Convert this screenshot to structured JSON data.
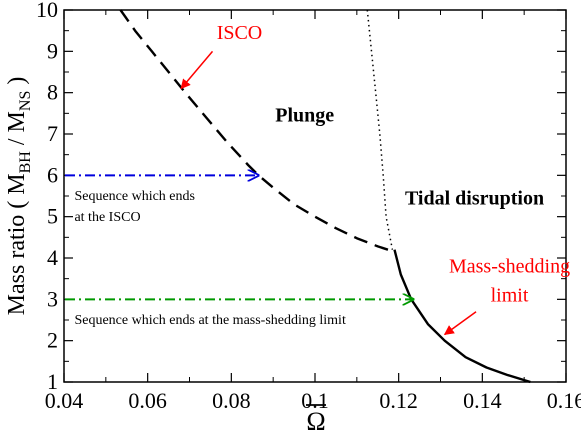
{
  "chart_data": {
    "type": "line",
    "xlabel": "Ω",
    "ylabel": "Mass ratio ( M",
    "ylabel_sub1": "BH",
    "ylabel_mid": " / M",
    "ylabel_sub2": "NS",
    "ylabel_end": " )",
    "xlim": [
      0.04,
      0.16
    ],
    "ylim": [
      1,
      10
    ],
    "x_ticks": [
      0.04,
      0.06,
      0.08,
      0.1,
      0.12,
      0.14,
      0.16
    ],
    "x_tick_labels": [
      "0.04",
      "0.06",
      "0.08",
      "0.1",
      "0.12",
      "0.14",
      "0.16"
    ],
    "y_ticks": [
      1,
      2,
      3,
      4,
      5,
      6,
      7,
      8,
      9,
      10
    ],
    "y_tick_labels": [
      "1",
      "2",
      "3",
      "4",
      "5",
      "6",
      "7",
      "8",
      "9",
      "10"
    ],
    "grid": false,
    "series": [
      {
        "key": "isco",
        "style": "dashed",
        "color": "#000000",
        "points": [
          [
            0.0535,
            10
          ],
          [
            0.057,
            9.5
          ],
          [
            0.061,
            9
          ],
          [
            0.065,
            8.5
          ],
          [
            0.069,
            8
          ],
          [
            0.074,
            7.4
          ],
          [
            0.079,
            6.8
          ],
          [
            0.084,
            6.25
          ],
          [
            0.0865,
            6.0
          ],
          [
            0.09,
            5.7
          ],
          [
            0.095,
            5.3
          ],
          [
            0.1,
            5.0
          ],
          [
            0.105,
            4.72
          ],
          [
            0.11,
            4.48
          ],
          [
            0.115,
            4.28
          ],
          [
            0.119,
            4.15
          ]
        ]
      },
      {
        "key": "tidal-boundary",
        "style": "dotted",
        "color": "#000000",
        "points": [
          [
            0.1125,
            10
          ],
          [
            0.1135,
            9.0
          ],
          [
            0.1145,
            8.0
          ],
          [
            0.1155,
            7.0
          ],
          [
            0.1163,
            6.0
          ],
          [
            0.117,
            5.0
          ],
          [
            0.1185,
            4.2
          ]
        ]
      },
      {
        "key": "mass-shedding",
        "style": "solid",
        "color": "#000000",
        "points": [
          [
            0.119,
            4.2
          ],
          [
            0.1205,
            3.6
          ],
          [
            0.123,
            3.0
          ],
          [
            0.127,
            2.4
          ],
          [
            0.131,
            2.0
          ],
          [
            0.136,
            1.6
          ],
          [
            0.141,
            1.35
          ],
          [
            0.146,
            1.17
          ],
          [
            0.1515,
            1.0
          ]
        ]
      }
    ],
    "arrows": [
      {
        "key": "isco-sequence",
        "style": "dashdot",
        "color": "#0000dd",
        "from": [
          0.04,
          6.0
        ],
        "to": [
          0.0865,
          6.0
        ]
      },
      {
        "key": "mass-shedding-sequence",
        "style": "dashdot",
        "color": "#009900",
        "from": [
          0.04,
          3.0
        ],
        "to": [
          0.1235,
          3.0
        ]
      },
      {
        "key": "isco-pointer",
        "style": "solid",
        "color": "#ff0000",
        "from": [
          0.0755,
          9.0
        ],
        "to": [
          0.068,
          8.1
        ]
      },
      {
        "key": "mass-shedding-pointer",
        "style": "solid",
        "color": "#ff0000",
        "from": [
          0.1385,
          2.7
        ],
        "to": [
          0.131,
          2.15
        ]
      }
    ],
    "annotations": [
      {
        "key": "isco",
        "text": "ISCO",
        "x": 0.0765,
        "y": 9.3,
        "color": "#ff0000",
        "size": 20,
        "weight": "normal",
        "anchor": "start"
      },
      {
        "key": "plunge",
        "text": "Plunge",
        "x": 0.0905,
        "y": 7.3,
        "color": "#000000",
        "size": 20,
        "weight": "bold",
        "anchor": "start"
      },
      {
        "key": "tidal",
        "text": "Tidal disruption",
        "x": 0.1215,
        "y": 5.3,
        "color": "#000000",
        "size": 20,
        "weight": "bold",
        "anchor": "start"
      },
      {
        "key": "mass-shedding-1",
        "text": "Mass-shedding",
        "x": 0.1465,
        "y": 3.65,
        "color": "#ff0000",
        "size": 20,
        "weight": "normal",
        "anchor": "middle"
      },
      {
        "key": "mass-shedding-2",
        "text": "limit",
        "x": 0.1465,
        "y": 2.95,
        "color": "#ff0000",
        "size": 20,
        "weight": "normal",
        "anchor": "middle"
      },
      {
        "key": "seq-isco-1",
        "text": "Sequence which ends",
        "x": 0.0425,
        "y": 5.4,
        "color": "#000000",
        "size": 14,
        "weight": "normal",
        "anchor": "start"
      },
      {
        "key": "seq-isco-2",
        "text": "at the ISCO",
        "x": 0.0425,
        "y": 4.9,
        "color": "#000000",
        "size": 14,
        "weight": "normal",
        "anchor": "start"
      },
      {
        "key": "seq-ms",
        "text": "Sequence which ends at the mass-shedding limit",
        "x": 0.0425,
        "y": 2.4,
        "color": "#000000",
        "size": 14,
        "weight": "normal",
        "anchor": "start"
      }
    ]
  }
}
